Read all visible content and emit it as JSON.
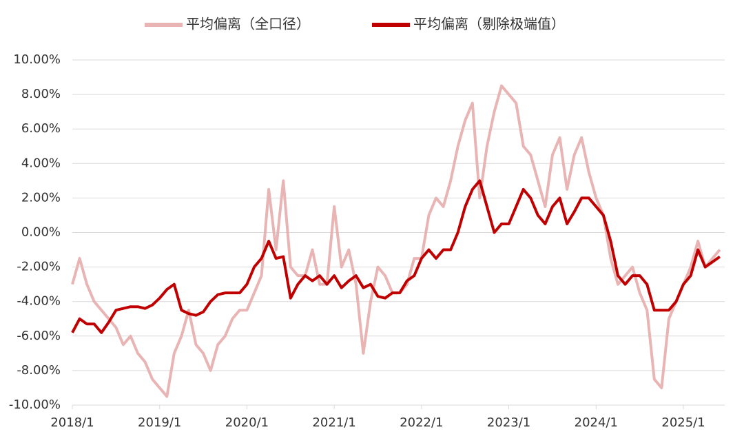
{
  "chart_data": {
    "type": "line",
    "categories": [
      "2018/1",
      null,
      null,
      null,
      null,
      null,
      null,
      null,
      null,
      null,
      null,
      null,
      "2019/1",
      null,
      null,
      null,
      null,
      null,
      null,
      null,
      null,
      null,
      null,
      null,
      "2020/1",
      null,
      null,
      null,
      null,
      null,
      null,
      null,
      null,
      null,
      null,
      null,
      "2021/1",
      null,
      null,
      null,
      null,
      null,
      null,
      null,
      null,
      null,
      null,
      null,
      "2022/1",
      null,
      null,
      null,
      null,
      null,
      null,
      null,
      null,
      null,
      null,
      null,
      "2023/1",
      null,
      null,
      null,
      null,
      null,
      null,
      null,
      null,
      null,
      null,
      null,
      "2024/1",
      null,
      null,
      null,
      null,
      null,
      null,
      null,
      null,
      null,
      null,
      null,
      "2025/1",
      null,
      null,
      null,
      null,
      null
    ],
    "series": [
      {
        "name": "平均偏离（全口径）",
        "color": "#e8b4b4",
        "values": [
          -3,
          -1.5,
          -3,
          -4,
          -4.5,
          -5,
          -5.5,
          -6.5,
          -6,
          -7,
          -7.5,
          -8.5,
          -9,
          -9.5,
          -7,
          -6,
          -4.5,
          -6.5,
          -7,
          -8,
          -6.5,
          -6,
          -5,
          -4.5,
          -4.5,
          -3.5,
          -2.5,
          2.5,
          -1,
          3,
          -2,
          -2.5,
          -2.5,
          -1,
          -3,
          -3,
          1.5,
          -2,
          -1,
          -3,
          -7,
          -4,
          -2,
          -2.5,
          -3.5,
          -3.5,
          -3,
          -1.5,
          -1.5,
          1,
          2,
          1.5,
          3,
          5,
          6.5,
          7.5,
          2,
          5,
          7,
          8.5,
          8,
          7.5,
          5,
          4.5,
          3,
          1.5,
          4.5,
          5.5,
          2.5,
          4.5,
          5.5,
          3.5,
          2,
          1,
          -1.5,
          -3,
          -2.5,
          -2,
          -3.5,
          -4.5,
          -8.5,
          -9,
          -5,
          -4,
          -3,
          -2,
          -0.5,
          -2,
          -1.5,
          -1
        ]
      },
      {
        "name": "平均偏离（剔除极端值）",
        "color": "#c00000",
        "values": [
          -5.8,
          -5,
          -5.3,
          -5.3,
          -5.8,
          -5.2,
          -4.5,
          -4.4,
          -4.3,
          -4.3,
          -4.4,
          -4.2,
          -3.8,
          -3.3,
          -3,
          -4.5,
          -4.7,
          -4.8,
          -4.6,
          -4,
          -3.6,
          -3.5,
          -3.5,
          -3.5,
          -3,
          -2,
          -1.5,
          -0.5,
          -1.5,
          -1.4,
          -3.8,
          -3,
          -2.5,
          -2.8,
          -2.5,
          -3,
          -2.5,
          -3.2,
          -2.8,
          -2.5,
          -3.2,
          -3,
          -3.7,
          -3.8,
          -3.5,
          -3.5,
          -2.8,
          -2.5,
          -1.5,
          -1,
          -1.5,
          -1,
          -1,
          0,
          1.5,
          2.5,
          3,
          1.5,
          0,
          0.5,
          0.5,
          1.5,
          2.5,
          2,
          1,
          0.5,
          1.5,
          2,
          0.5,
          1.2,
          2,
          2,
          1.5,
          1,
          -0.5,
          -2.5,
          -3,
          -2.5,
          -2.5,
          -3,
          -4.5,
          -4.5,
          -4.5,
          -4,
          -3,
          -2.5,
          -1,
          -2,
          -1.7,
          -1.4
        ]
      }
    ],
    "ylim": [
      -10,
      10
    ],
    "yticks": [
      {
        "value": -10,
        "label": "-10.00%"
      },
      {
        "value": -8,
        "label": "-8.00%"
      },
      {
        "value": -6,
        "label": "-6.00%"
      },
      {
        "value": -4,
        "label": "-4.00%"
      },
      {
        "value": -2,
        "label": "-2.00%"
      },
      {
        "value": 0,
        "label": "0.00%"
      },
      {
        "value": 2,
        "label": "2.00%"
      },
      {
        "value": 4,
        "label": "4.00%"
      },
      {
        "value": 6,
        "label": "6.00%"
      },
      {
        "value": 8,
        "label": "8.00%"
      },
      {
        "value": 10,
        "label": "10.00%"
      }
    ],
    "grid": true,
    "legend": "top"
  }
}
